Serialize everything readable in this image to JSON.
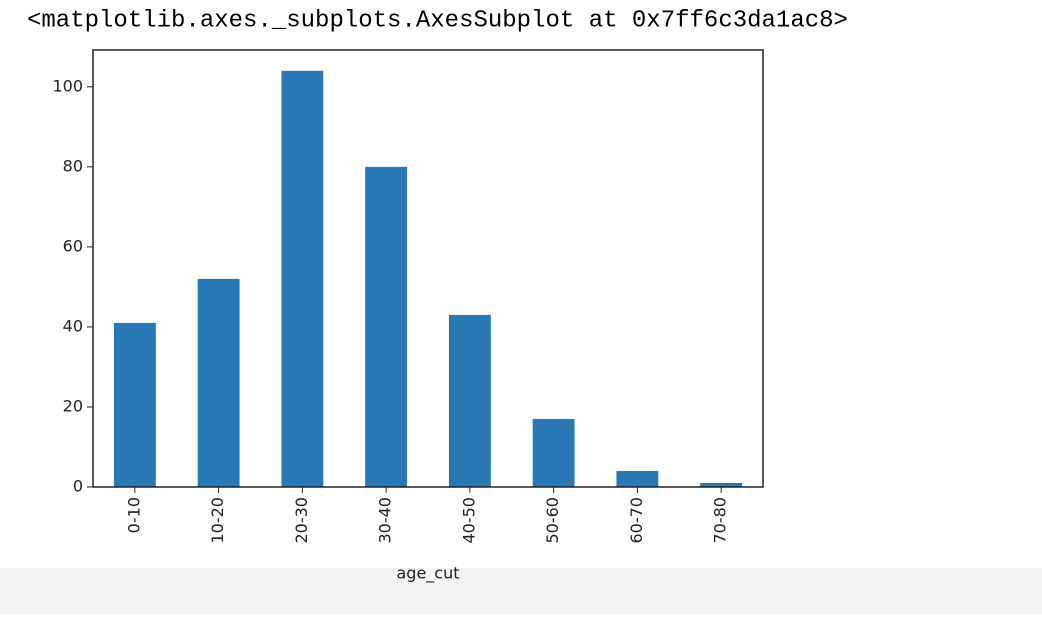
{
  "output_text": "<matplotlib.axes._subplots.AxesSubplot at 0x7ff6c3da1ac8>",
  "chart_data": {
    "type": "bar",
    "xlabel": "age_cut",
    "categories": [
      "0-10",
      "10-20",
      "20-30",
      "30-40",
      "40-50",
      "50-60",
      "60-70",
      "70-80"
    ],
    "values": [
      41,
      52,
      104,
      80,
      43,
      17,
      4,
      1
    ],
    "color": "#2878b5",
    "ylim": [
      0,
      109.2
    ],
    "yticks": [
      0,
      20,
      40,
      60,
      80,
      100
    ],
    "grid": false
  }
}
